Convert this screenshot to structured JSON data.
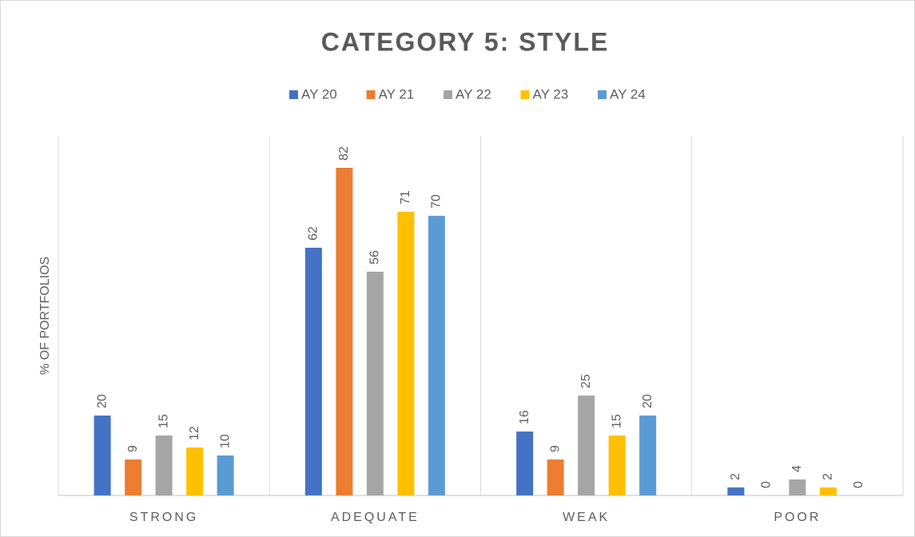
{
  "chart_data": {
    "type": "bar",
    "title": "CATEGORY 5: STYLE",
    "y_label": "% OF PORTFOLIOS",
    "categories": [
      "STRONG",
      "ADEQUATE",
      "WEAK",
      "POOR"
    ],
    "series": [
      {
        "name": "AY 20",
        "color": "#4472c4",
        "values": [
          20,
          62,
          16,
          2
        ]
      },
      {
        "name": "AY 21",
        "color": "#ed7d31",
        "values": [
          9,
          82,
          9,
          0
        ]
      },
      {
        "name": "AY 22",
        "color": "#a5a5a5",
        "values": [
          15,
          56,
          25,
          4
        ]
      },
      {
        "name": "AY 23",
        "color": "#ffc000",
        "values": [
          12,
          71,
          15,
          2
        ]
      },
      {
        "name": "AY 24",
        "color": "#5b9bd5",
        "values": [
          10,
          70,
          20,
          0
        ]
      }
    ],
    "ylim": [
      0,
      90
    ],
    "legend": "top"
  }
}
